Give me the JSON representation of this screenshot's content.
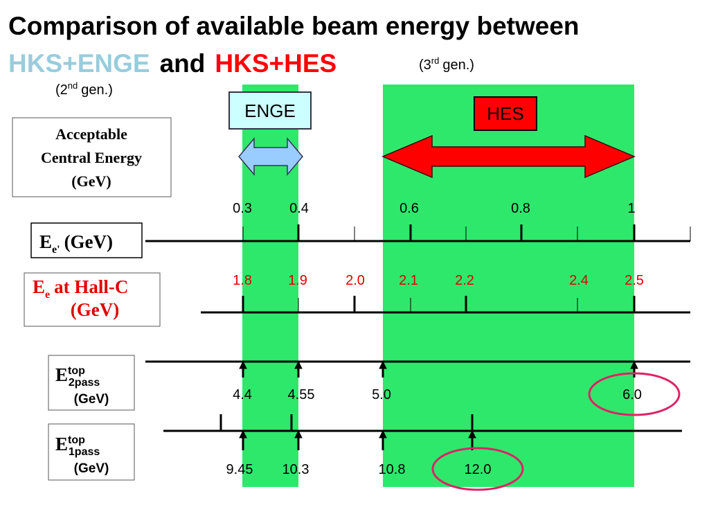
{
  "title": {
    "line1": "Comparison of available beam energy between",
    "enge": "HKS+ENGE",
    "and": "and",
    "hes": "HKS+HES",
    "gen3": {
      "pre": "(3",
      "sup": "rd",
      "post": "gen.)"
    },
    "gen2": {
      "pre": "(2",
      "sup": "nd",
      "post": "gen.)"
    }
  },
  "boxes": {
    "enge": "ENGE",
    "hes": "HES",
    "acceptable": [
      "Acceptable",
      "Central Energy",
      "(GeV)"
    ]
  },
  "rows": [
    {
      "label": {
        "main": "E",
        "sub": "e'",
        "rest": "(GeV)"
      },
      "values": [
        "0.3",
        "0.4",
        "0.6",
        "0.8",
        "1"
      ]
    },
    {
      "label": {
        "main": "E",
        "sub": "e",
        "rest": "at Hall-C",
        "line2": "(GeV)"
      },
      "values": [
        "1.8",
        "1.9",
        "2.0",
        "2.1",
        "2.2",
        "2.4",
        "2.5"
      ]
    },
    {
      "label": {
        "main": "E",
        "sup": "top",
        "sub": "2pass",
        "line2": "(GeV)"
      },
      "values": [
        "4.4",
        "4.55",
        "5.0",
        "6.0"
      ]
    },
    {
      "label": {
        "main": "E",
        "sup": "top",
        "sub": "1pass",
        "line2": "(GeV)"
      },
      "values": [
        "9.45",
        "10.3",
        "10.8",
        "12.0"
      ]
    }
  ]
}
